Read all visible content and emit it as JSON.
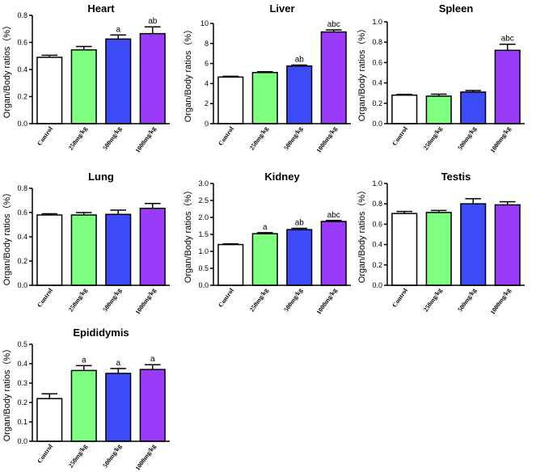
{
  "chart_data": [
    {
      "type": "bar",
      "title": "Heart",
      "ylabel": "Organ/Body ratios（%）",
      "categories": [
        "Control",
        "250mg/kg",
        "500mg/kg",
        "1000mg/kg"
      ],
      "values": [
        0.49,
        0.545,
        0.625,
        0.665
      ],
      "errors": [
        0.015,
        0.025,
        0.03,
        0.05
      ],
      "significance": [
        "",
        "",
        "a",
        "ab"
      ],
      "ylim": [
        0,
        0.8
      ],
      "yticks": [
        "0.0",
        "0.2",
        "0.4",
        "0.6",
        "0.8"
      ]
    },
    {
      "type": "bar",
      "title": "Liver",
      "ylabel": "Organ/Body ratios（%）",
      "categories": [
        "Control",
        "250mg/kg",
        "500mg/kg",
        "1000mg/kg"
      ],
      "values": [
        4.65,
        5.1,
        5.75,
        9.15
      ],
      "errors": [
        0.08,
        0.08,
        0.1,
        0.2
      ],
      "significance": [
        "",
        "",
        "ab",
        "abc"
      ],
      "ylim": [
        0,
        10
      ],
      "yticks": [
        "0",
        "2",
        "4",
        "6",
        "8",
        "10"
      ]
    },
    {
      "type": "bar",
      "title": "Spleen",
      "ylabel": "Organ/Body ratios（%）",
      "categories": [
        "Control",
        "250mg/kg",
        "500mg/kg",
        "1000mg/kg"
      ],
      "values": [
        0.28,
        0.27,
        0.31,
        0.72
      ],
      "errors": [
        0.008,
        0.02,
        0.015,
        0.06
      ],
      "significance": [
        "",
        "",
        "",
        "abc"
      ],
      "ylim": [
        0,
        1.0
      ],
      "yticks": [
        "0.0",
        "0.2",
        "0.4",
        "0.6",
        "0.8",
        "1.0"
      ]
    },
    {
      "type": "bar",
      "title": "Lung",
      "ylabel": "Organ/Body ratios（%）",
      "categories": [
        "Control",
        "250mg/kg",
        "500mg/kg",
        "1000mg/kg"
      ],
      "values": [
        0.58,
        0.58,
        0.585,
        0.635
      ],
      "errors": [
        0.01,
        0.02,
        0.035,
        0.04
      ],
      "significance": [
        "",
        "",
        "",
        ""
      ],
      "ylim": [
        0,
        0.8
      ],
      "yticks": [
        "0.0",
        "0.2",
        "0.4",
        "0.6",
        "0.8"
      ]
    },
    {
      "type": "bar",
      "title": "Kidney",
      "ylabel": "Organ/Body ratios（%）",
      "categories": [
        "Control",
        "250mg/kg",
        "500mg/kg",
        "1000mg/kg"
      ],
      "values": [
        1.2,
        1.52,
        1.64,
        1.88
      ],
      "errors": [
        0.02,
        0.03,
        0.04,
        0.03
      ],
      "significance": [
        "",
        "a",
        "ab",
        "abc"
      ],
      "ylim": [
        0,
        3.0
      ],
      "yticks": [
        "0.0",
        "0.5",
        "1.0",
        "1.5",
        "2.0",
        "2.5",
        "3.0"
      ]
    },
    {
      "type": "bar",
      "title": "Testis",
      "ylabel": "Organ/Body ratios（%）",
      "categories": [
        "Control",
        "250mg/kg",
        "500mg/kg",
        "1000mg/kg"
      ],
      "values": [
        0.705,
        0.715,
        0.8,
        0.79
      ],
      "errors": [
        0.02,
        0.02,
        0.05,
        0.03
      ],
      "significance": [
        "",
        "",
        "",
        ""
      ],
      "ylim": [
        0,
        1.0
      ],
      "yticks": [
        "0.0",
        "0.2",
        "0.4",
        "0.6",
        "0.8",
        "1.0"
      ]
    },
    {
      "type": "bar",
      "title": "Epididymis",
      "ylabel": "Organ/Body ratios（%）",
      "categories": [
        "Control",
        "250mg/kg",
        "500mg/kg",
        "1000mg/kg"
      ],
      "values": [
        0.22,
        0.365,
        0.35,
        0.37
      ],
      "errors": [
        0.025,
        0.025,
        0.025,
        0.025
      ],
      "significance": [
        "",
        "a",
        "a",
        "a"
      ],
      "ylim": [
        0,
        0.5
      ],
      "yticks": [
        "0.0",
        "0.1",
        "0.2",
        "0.3",
        "0.4",
        "0.5"
      ]
    }
  ],
  "colors": {
    "bars": [
      "#ffffff",
      "#7fff7f",
      "#3d4bf7",
      "#9a3cf7"
    ],
    "outline": "#000000"
  }
}
